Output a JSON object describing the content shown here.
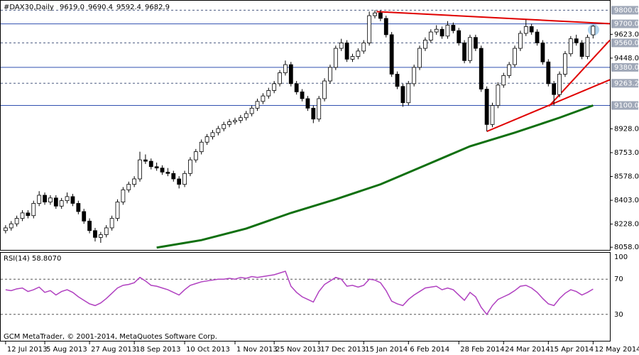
{
  "chart_data": {
    "type": "candlestick",
    "header": {
      "symbol": "#DAX30,Daily",
      "ohlc": [
        "9619.0",
        "9690.4",
        "9592.4",
        "9682.9"
      ]
    },
    "footer": "GCM MetaTrader, © 2001-2014, MetaQuotes Software Corp.",
    "xlim": [
      -1,
      108
    ],
    "ylim": [
      8038,
      9870
    ],
    "xticks": [
      {
        "value": 0,
        "label": "12 Jul 2013"
      },
      {
        "value": 7,
        "label": "5 Aug 2013"
      },
      {
        "value": 15,
        "label": "27 Aug 2013"
      },
      {
        "value": 23,
        "label": "18 Sep 2013"
      },
      {
        "value": 32,
        "label": "10 Oct 2013"
      },
      {
        "value": 41,
        "label": "1 Nov 2013"
      },
      {
        "value": 48,
        "label": "25 Nov 2013"
      },
      {
        "value": 56,
        "label": "17 Dec 2013"
      },
      {
        "value": 64,
        "label": "15 Jan 2014"
      },
      {
        "value": 72,
        "label": "6 Feb 2014"
      },
      {
        "value": 81,
        "label": "28 Feb 2014"
      },
      {
        "value": 89,
        "label": "24 Mar 2014"
      },
      {
        "value": 97,
        "label": "15 Apr 2014"
      },
      {
        "value": 105,
        "label": "12 May 2014"
      }
    ],
    "yticks": [
      {
        "value": 9623,
        "label": "9623.0"
      },
      {
        "value": 9448,
        "label": "9448.0"
      },
      {
        "value": 8928,
        "label": "8928.0"
      },
      {
        "value": 8753,
        "label": "8753.0"
      },
      {
        "value": 8578,
        "label": "8578.0"
      },
      {
        "value": 8403,
        "label": "8403.0"
      },
      {
        "value": 8228,
        "label": "8228.0"
      },
      {
        "value": 8058,
        "label": "8058.0"
      }
    ],
    "levels": [
      {
        "value": 9800,
        "label": "9800.0",
        "style": "dash"
      },
      {
        "value": 9700,
        "label": "9700.0",
        "style": "solid"
      },
      {
        "value": 9560,
        "label": "9560.0",
        "style": "dash"
      },
      {
        "value": 9380,
        "label": "9380.0",
        "style": "solid"
      },
      {
        "value": 9263.2,
        "label": "9263.2",
        "style": "dash"
      },
      {
        "value": 9100,
        "label": "9100.0",
        "style": "solid"
      }
    ],
    "candles": [
      [
        8180,
        8220,
        8160,
        8200
      ],
      [
        8200,
        8250,
        8180,
        8230
      ],
      [
        8230,
        8290,
        8210,
        8270
      ],
      [
        8270,
        8330,
        8250,
        8310
      ],
      [
        8310,
        8330,
        8270,
        8290
      ],
      [
        8290,
        8400,
        8270,
        8380
      ],
      [
        8380,
        8470,
        8360,
        8440
      ],
      [
        8440,
        8460,
        8370,
        8390
      ],
      [
        8390,
        8440,
        8370,
        8420
      ],
      [
        8420,
        8440,
        8340,
        8360
      ],
      [
        8360,
        8420,
        8340,
        8400
      ],
      [
        8400,
        8460,
        8380,
        8430
      ],
      [
        8430,
        8450,
        8360,
        8380
      ],
      [
        8380,
        8400,
        8300,
        8320
      ],
      [
        8320,
        8340,
        8230,
        8250
      ],
      [
        8250,
        8270,
        8160,
        8180
      ],
      [
        8180,
        8200,
        8100,
        8130
      ],
      [
        8130,
        8170,
        8090,
        8150
      ],
      [
        8150,
        8220,
        8130,
        8200
      ],
      [
        8200,
        8290,
        8180,
        8270
      ],
      [
        8270,
        8410,
        8250,
        8390
      ],
      [
        8390,
        8500,
        8370,
        8480
      ],
      [
        8480,
        8540,
        8460,
        8520
      ],
      [
        8520,
        8580,
        8500,
        8560
      ],
      [
        8560,
        8760,
        8540,
        8700
      ],
      [
        8700,
        8740,
        8670,
        8690
      ],
      [
        8690,
        8710,
        8630,
        8650
      ],
      [
        8650,
        8680,
        8620,
        8640
      ],
      [
        8640,
        8660,
        8590,
        8610
      ],
      [
        8610,
        8640,
        8580,
        8600
      ],
      [
        8600,
        8620,
        8540,
        8560
      ],
      [
        8560,
        8580,
        8490,
        8520
      ],
      [
        8520,
        8620,
        8500,
        8600
      ],
      [
        8600,
        8720,
        8580,
        8700
      ],
      [
        8700,
        8780,
        8680,
        8760
      ],
      [
        8760,
        8850,
        8740,
        8830
      ],
      [
        8830,
        8890,
        8810,
        8870
      ],
      [
        8870,
        8920,
        8850,
        8900
      ],
      [
        8900,
        8950,
        8880,
        8930
      ],
      [
        8930,
        8980,
        8910,
        8960
      ],
      [
        8960,
        9000,
        8940,
        8980
      ],
      [
        8980,
        9010,
        8960,
        8990
      ],
      [
        8990,
        9030,
        8970,
        9010
      ],
      [
        9010,
        9060,
        8990,
        9040
      ],
      [
        9040,
        9100,
        9020,
        9080
      ],
      [
        9080,
        9150,
        9060,
        9130
      ],
      [
        9130,
        9190,
        9110,
        9170
      ],
      [
        9170,
        9230,
        9150,
        9210
      ],
      [
        9210,
        9280,
        9190,
        9260
      ],
      [
        9260,
        9360,
        9240,
        9340
      ],
      [
        9340,
        9430,
        9320,
        9400
      ],
      [
        9400,
        9420,
        9240,
        9260
      ],
      [
        9260,
        9280,
        9180,
        9200
      ],
      [
        9200,
        9220,
        9130,
        9150
      ],
      [
        9150,
        9170,
        9060,
        9080
      ],
      [
        9080,
        9100,
        8970,
        9000
      ],
      [
        9000,
        9170,
        8980,
        9150
      ],
      [
        9150,
        9300,
        9130,
        9280
      ],
      [
        9280,
        9400,
        9260,
        9380
      ],
      [
        9380,
        9540,
        9360,
        9520
      ],
      [
        9520,
        9590,
        9500,
        9560
      ],
      [
        9560,
        9580,
        9420,
        9440
      ],
      [
        9440,
        9480,
        9420,
        9460
      ],
      [
        9460,
        9520,
        9440,
        9500
      ],
      [
        9500,
        9580,
        9480,
        9560
      ],
      [
        9560,
        9790,
        9540,
        9760
      ],
      [
        9760,
        9800,
        9740,
        9780
      ],
      [
        9780,
        9800,
        9720,
        9740
      ],
      [
        9740,
        9760,
        9600,
        9620
      ],
      [
        9620,
        9640,
        9310,
        9330
      ],
      [
        9330,
        9350,
        9220,
        9240
      ],
      [
        9240,
        9260,
        9090,
        9120
      ],
      [
        9120,
        9280,
        9100,
        9260
      ],
      [
        9260,
        9400,
        9240,
        9380
      ],
      [
        9380,
        9540,
        9360,
        9520
      ],
      [
        9520,
        9600,
        9500,
        9580
      ],
      [
        9580,
        9660,
        9560,
        9640
      ],
      [
        9640,
        9690,
        9620,
        9660
      ],
      [
        9660,
        9680,
        9590,
        9610
      ],
      [
        9610,
        9720,
        9590,
        9690
      ],
      [
        9690,
        9710,
        9630,
        9650
      ],
      [
        9650,
        9670,
        9540,
        9560
      ],
      [
        9560,
        9580,
        9410,
        9430
      ],
      [
        9430,
        9620,
        9410,
        9600
      ],
      [
        9600,
        9620,
        9500,
        9520
      ],
      [
        9520,
        9540,
        9200,
        9220
      ],
      [
        9220,
        9240,
        8910,
        8960
      ],
      [
        8960,
        9120,
        8940,
        9100
      ],
      [
        9100,
        9270,
        9080,
        9250
      ],
      [
        9250,
        9340,
        9230,
        9320
      ],
      [
        9320,
        9420,
        9300,
        9400
      ],
      [
        9400,
        9540,
        9380,
        9520
      ],
      [
        9520,
        9650,
        9500,
        9630
      ],
      [
        9630,
        9730,
        9610,
        9680
      ],
      [
        9680,
        9700,
        9620,
        9640
      ],
      [
        9640,
        9660,
        9540,
        9560
      ],
      [
        9560,
        9580,
        9400,
        9420
      ],
      [
        9420,
        9440,
        9240,
        9260
      ],
      [
        9260,
        9280,
        9100,
        9180
      ],
      [
        9180,
        9350,
        9160,
        9330
      ],
      [
        9330,
        9500,
        9310,
        9480
      ],
      [
        9480,
        9610,
        9460,
        9590
      ],
      [
        9590,
        9620,
        9540,
        9560
      ],
      [
        9560,
        9580,
        9440,
        9460
      ],
      [
        9460,
        9620,
        9440,
        9600
      ],
      [
        9619,
        9690.4,
        9592.4,
        9682.9
      ]
    ],
    "ma": {
      "color": "#107010",
      "x": [
        27,
        35,
        43,
        51,
        59,
        67,
        75,
        83,
        91,
        99,
        105
      ],
      "values": [
        8055,
        8110,
        8195,
        8310,
        8410,
        8520,
        8660,
        8800,
        8900,
        9010,
        9100
      ]
    },
    "trendlines": {
      "color": "#e00000",
      "lines": [
        {
          "x": [
            66.3,
            108
          ],
          "y": [
            9790,
            9701
          ]
        },
        {
          "x": [
            86,
            108
          ],
          "y": [
            8909,
            9289
          ]
        },
        {
          "x": [
            97.1,
            108
          ],
          "y": [
            9094,
            9580
          ]
        }
      ]
    },
    "rsi": {
      "label": "RSI(14) 58.8070",
      "color": "#b040c0",
      "ylim": [
        0,
        100
      ],
      "yticks": [
        30,
        70,
        100
      ],
      "values": [
        58,
        57,
        59,
        60,
        56,
        58,
        61,
        55,
        57,
        52,
        56,
        58,
        55,
        50,
        46,
        42,
        40,
        43,
        48,
        54,
        60,
        63,
        64,
        66,
        72,
        68,
        63,
        62,
        60,
        58,
        55,
        52,
        58,
        63,
        65,
        67,
        68,
        69,
        70,
        70,
        71,
        70,
        72,
        71,
        73,
        72,
        73,
        74,
        75,
        77,
        79,
        62,
        55,
        50,
        47,
        44,
        56,
        64,
        68,
        72,
        70,
        62,
        63,
        61,
        63,
        70,
        69,
        66,
        57,
        45,
        42,
        40,
        47,
        52,
        56,
        60,
        61,
        62,
        58,
        60,
        58,
        52,
        46,
        55,
        50,
        38,
        30,
        40,
        47,
        50,
        53,
        57,
        62,
        63,
        60,
        55,
        48,
        42,
        40,
        48,
        54,
        58,
        56,
        52,
        55,
        58.8
      ]
    }
  }
}
